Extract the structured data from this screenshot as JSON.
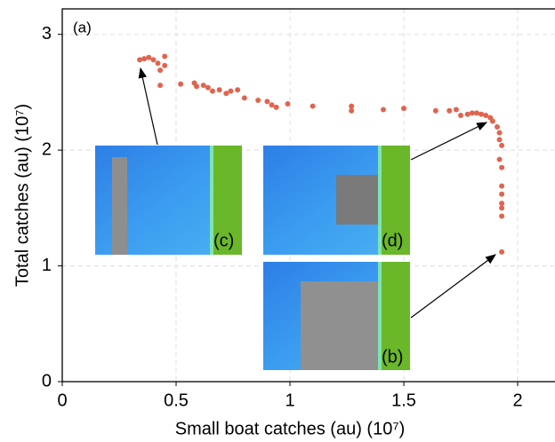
{
  "chart_data": {
    "type": "scatter",
    "xlabel": "Small boat catches (au) (10⁷)",
    "ylabel": "Total catches (au) (10⁷)",
    "annotations": [
      "(a)",
      "(c)",
      "(d)",
      "(b)"
    ],
    "xlim": [
      0,
      2.16
    ],
    "ylim": [
      0,
      3.22
    ],
    "xticks": [
      0,
      0.5,
      1,
      1.5,
      2
    ],
    "yticks": [
      0,
      1,
      2,
      3
    ],
    "grid": true,
    "color": "#e0644f",
    "x": [
      0.34,
      0.36,
      0.38,
      0.4,
      0.42,
      0.45,
      0.43,
      0.45,
      0.43,
      0.52,
      0.58,
      0.59,
      0.62,
      0.64,
      0.66,
      0.69,
      0.72,
      0.74,
      0.77,
      0.8,
      0.86,
      0.9,
      0.92,
      0.94,
      0.99,
      1.1,
      1.27,
      1.27,
      1.41,
      1.5,
      1.64,
      1.7,
      1.73,
      1.75,
      1.78,
      1.8,
      1.82,
      1.84,
      1.86,
      1.88,
      1.89,
      1.91,
      1.92,
      1.92,
      1.93,
      1.92,
      1.93,
      1.93,
      1.93,
      1.93,
      1.93,
      1.93,
      1.93
    ],
    "y": [
      2.78,
      2.79,
      2.8,
      2.78,
      2.75,
      2.81,
      2.69,
      2.73,
      2.56,
      2.57,
      2.58,
      2.55,
      2.56,
      2.54,
      2.51,
      2.52,
      2.49,
      2.51,
      2.52,
      2.45,
      2.43,
      2.42,
      2.39,
      2.37,
      2.4,
      2.38,
      2.38,
      2.34,
      2.35,
      2.36,
      2.34,
      2.34,
      2.35,
      2.3,
      2.31,
      2.32,
      2.32,
      2.31,
      2.3,
      2.28,
      2.25,
      2.2,
      2.15,
      2.09,
      2.04,
      1.92,
      1.85,
      1.69,
      1.62,
      1.54,
      1.43,
      1.12,
      1.5
    ]
  }
}
